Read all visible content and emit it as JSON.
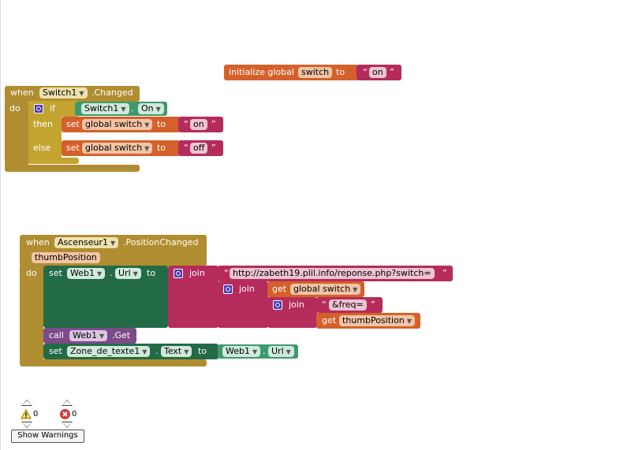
{
  "init_block": {
    "label": "initialize global",
    "var_name": "switch",
    "to": "to",
    "value": "on"
  },
  "switch_event": {
    "when": "when",
    "component": "Switch1",
    "event": ".Changed",
    "do": "do",
    "if": "if",
    "cond_component": "Switch1",
    "cond_prop": "On",
    "dot": ".",
    "then": "then",
    "else": "else",
    "set1": "set",
    "set1_var": "global switch",
    "set1_to": "to",
    "set1_value": "on",
    "set2": "set",
    "set2_var": "global switch",
    "set2_to": "to",
    "set2_value": "off"
  },
  "asc_event": {
    "when": "when",
    "component": "Ascenseur1",
    "event": ".PositionChanged",
    "param": "thumbPosition",
    "do": "do",
    "set": "set",
    "set_component": "Web1",
    "set_prop": "Url",
    "dot": ".",
    "to": "to",
    "join": "join",
    "url_text": "http://zabeth19.plil.info/reponse.php?switch=",
    "join2": "join",
    "get_global": "get",
    "get_global_var": "global switch",
    "join3": "join",
    "freq_text": "&freq=",
    "get_thumb": "get",
    "get_thumb_var": "thumbPosition",
    "call": "call",
    "call_component": "Web1",
    "call_method": ".Get",
    "set2": "set",
    "set2_component": "Zone_de_texte1",
    "set2_prop": "Text",
    "set2_to": "to",
    "val_component": "Web1",
    "val_prop": "Url"
  },
  "warnings": {
    "warning_count": "0",
    "error_count": "0",
    "button_label": "Show Warnings"
  },
  "quote_open": "“",
  "quote_close": "”",
  "arrow": "▼"
}
